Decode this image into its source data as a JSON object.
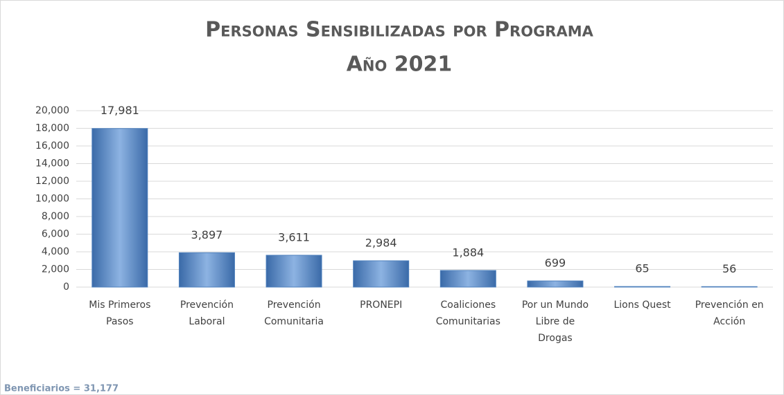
{
  "chart_data": {
    "type": "bar",
    "title": "Personas Sensibilizadas por Programa",
    "subtitle": "Año 2021",
    "categories": [
      [
        "Mis Primeros",
        "Pasos"
      ],
      [
        "Prevención",
        "Laboral"
      ],
      [
        "Prevención",
        "Comunitaria"
      ],
      [
        "PRONEPI"
      ],
      [
        "Coaliciones",
        "Comunitarias"
      ],
      [
        "Por un Mundo",
        "Libre de",
        "Drogas"
      ],
      [
        "Lions Quest"
      ],
      [
        "Prevención en",
        "Acción"
      ]
    ],
    "values": [
      17981,
      3897,
      3611,
      2984,
      1884,
      699,
      65,
      56
    ],
    "value_labels": [
      "17,981",
      "3,897",
      "3,611",
      "2,984",
      "1,884",
      "699",
      "65",
      "56"
    ],
    "color": "#4f81bd",
    "ylim": [
      0,
      20000
    ],
    "yticks": [
      0,
      {
        "value": 2000,
        "label": "2,000"
      },
      {
        "value": 4000,
        "label": "4,000"
      },
      {
        "value": 6000,
        "label": "6,000"
      },
      {
        "value": 8000,
        "label": "8,000"
      },
      {
        "value": 10000,
        "label": "10,000"
      },
      {
        "value": 12000,
        "label": "12,000"
      },
      {
        "value": 14000,
        "label": "14,000"
      },
      {
        "value": 16000,
        "label": "16,000"
      },
      {
        "value": 18000,
        "label": "18,000"
      },
      {
        "value": 20000,
        "label": "20,000"
      }
    ],
    "grid": true,
    "note": "Beneficiarios = 31,177"
  }
}
